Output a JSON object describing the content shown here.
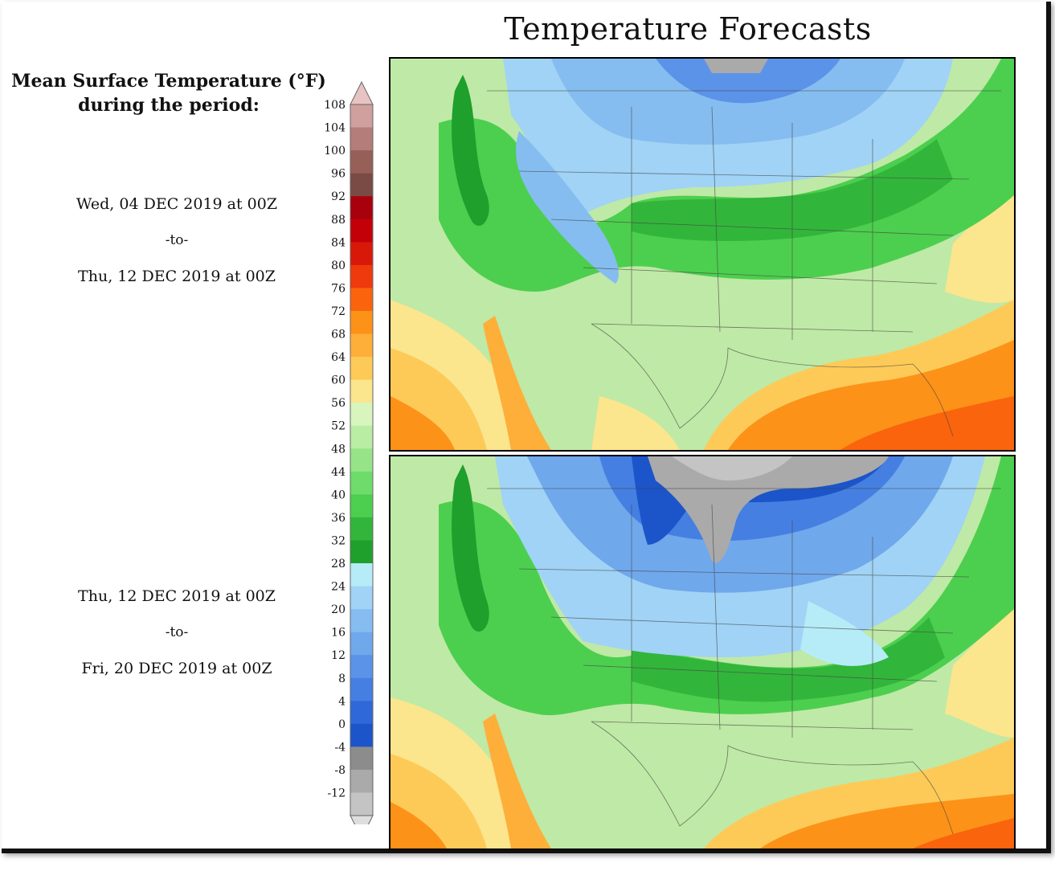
{
  "title": "Temperature Forecasts",
  "legend": {
    "title_line1": "Mean Surface Temperature (°F)",
    "title_line2": "during the period:",
    "ticks": [
      "108",
      "104",
      "100",
      "96",
      "92",
      "88",
      "84",
      "80",
      "76",
      "72",
      "68",
      "64",
      "60",
      "56",
      "52",
      "48",
      "44",
      "40",
      "36",
      "32",
      "28",
      "24",
      "20",
      "16",
      "12",
      "8",
      "4",
      "0",
      "-4",
      "-8",
      "-12"
    ],
    "colors": [
      "#e7c3c1",
      "#cfa09d",
      "#b47d79",
      "#966059",
      "#7a4a44",
      "#a8000c",
      "#c30008",
      "#d81808",
      "#ee3a0d",
      "#fa640d",
      "#fd9218",
      "#fdaf3a",
      "#fdca58",
      "#fbe58d",
      "#d7f5bd",
      "#b9eda3",
      "#97e488",
      "#6edc6a",
      "#4ccf4e",
      "#32b53b",
      "#1f9f2c",
      "#b6ecf8",
      "#a0d3f5",
      "#86bdf0",
      "#70a8ec",
      "#5b93e8",
      "#457fe2",
      "#2f69d9",
      "#1c55c9",
      "#8c8c8c",
      "#aaaaaa",
      "#c4c4c4",
      "#dedede"
    ]
  },
  "periods": [
    {
      "start": "Wed, 04 DEC 2019 at 00Z",
      "sep": "-to-",
      "end": "Thu, 12 DEC 2019 at 00Z"
    },
    {
      "start": "Thu, 12 DEC 2019 at 00Z",
      "sep": "-to-",
      "end": "Fri, 20 DEC 2019 at 00Z"
    }
  ]
}
